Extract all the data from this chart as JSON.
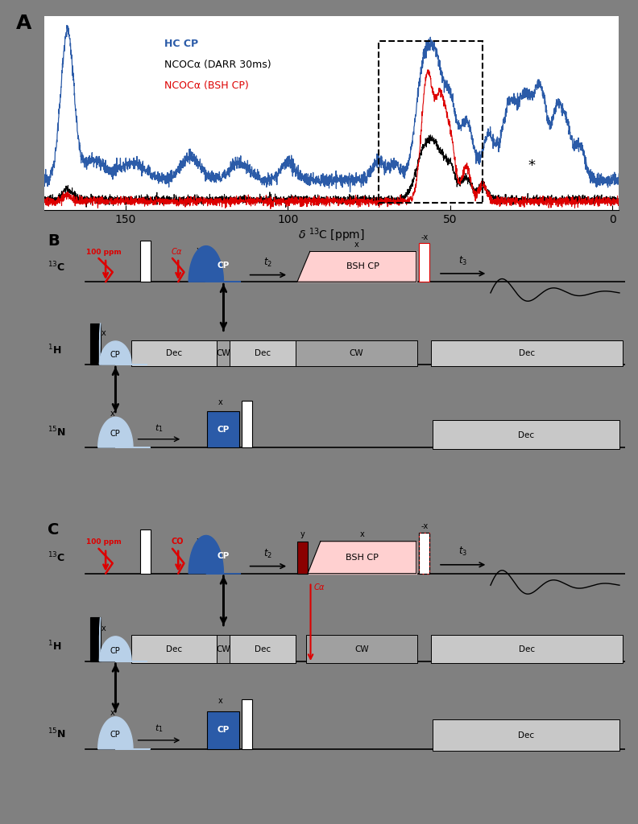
{
  "bg_color": "#808080",
  "white": "#FFFFFF",
  "light_blue": "#B8D0E8",
  "blue": "#2B5BA8",
  "light_pink": "#FFD0D0",
  "dark_red": "#8B0000",
  "red": "#DD0000",
  "black": "#000000",
  "gray_dec": "#C8C8C8",
  "gray_cw": "#A0A0A0",
  "legend_blue": "HC CP",
  "legend_black": "NCOCa (DARR 30ms)",
  "legend_red": "NCOCa (BSH CP)"
}
